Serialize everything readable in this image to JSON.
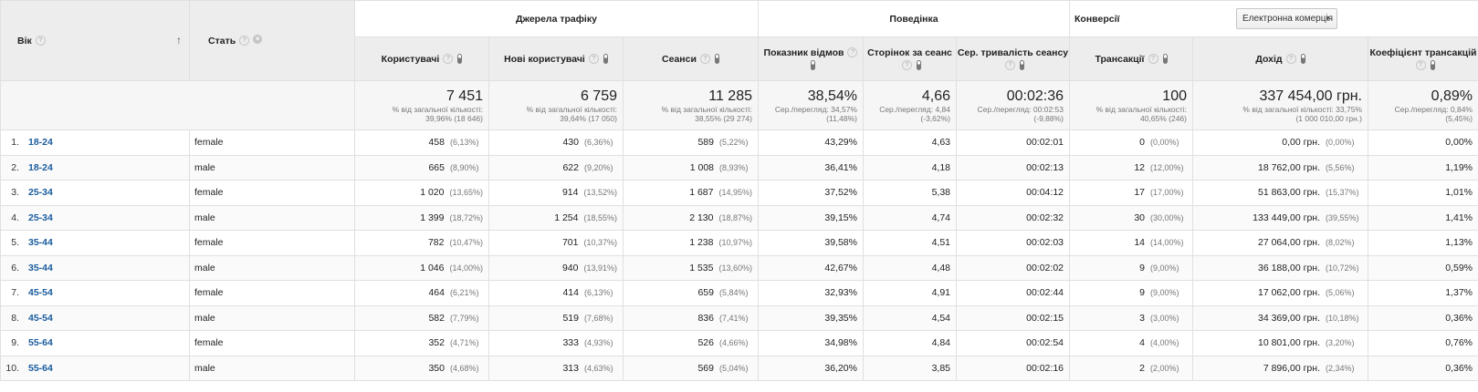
{
  "header": {
    "dimension1": "Вік",
    "dimension2": "Стать",
    "group_traffic": "Джерела трафіку",
    "group_behavior": "Поведінка",
    "group_conversions": "Конверсії",
    "ecommerce_dropdown": "Електронна комерція",
    "metrics": [
      "Користувачі",
      "Нові користувачі",
      "Сеанси",
      "Показник відмов",
      "Сторінок за сеанс",
      "Сер. тривалість сеансу",
      "Трансакції",
      "Дохід",
      "Коефіцієнт трансакцій"
    ]
  },
  "totals": [
    {
      "value": "7 451",
      "line1": "% від загальної кількості:",
      "line2": "39,96% (18 646)"
    },
    {
      "value": "6 759",
      "line1": "% від загальної кількості:",
      "line2": "39,64% (17 050)"
    },
    {
      "value": "11 285",
      "line1": "% від загальної кількості:",
      "line2": "38,55% (29 274)"
    },
    {
      "value": "38,54%",
      "line1": "Сер./перегляд: 34,57%",
      "line2": "(11,48%)"
    },
    {
      "value": "4,66",
      "line1": "Сер./перегляд: 4,84",
      "line2": "(-3,62%)"
    },
    {
      "value": "00:02:36",
      "line1": "Сер./перегляд: 00:02:53",
      "line2": "(-9,88%)"
    },
    {
      "value": "100",
      "line1": "% від загальної кількості:",
      "line2": "40,65% (246)"
    },
    {
      "value": "337 454,00 грн.",
      "line1": "% від загальної кількості: 33,75%",
      "line2": "(1 000 010,00 грн.)"
    },
    {
      "value": "0,89%",
      "line1": "Сер./перегляд: 0,84%",
      "line2": "(5,45%)"
    }
  ],
  "rows": [
    {
      "idx": "1.",
      "age": "18-24",
      "gender": "female",
      "users": "458",
      "users_pct": "(6,13%)",
      "new_users": "430",
      "new_users_pct": "(6,36%)",
      "sessions": "589",
      "sessions_pct": "(5,22%)",
      "bounce": "43,29%",
      "pages": "4,63",
      "duration": "00:02:01",
      "trans": "0",
      "trans_pct": "(0,00%)",
      "revenue": "0,00 грн.",
      "revenue_pct": "(0,00%)",
      "conv": "0,00%"
    },
    {
      "idx": "2.",
      "age": "18-24",
      "gender": "male",
      "users": "665",
      "users_pct": "(8,90%)",
      "new_users": "622",
      "new_users_pct": "(9,20%)",
      "sessions": "1 008",
      "sessions_pct": "(8,93%)",
      "bounce": "36,41%",
      "pages": "4,18",
      "duration": "00:02:13",
      "trans": "12",
      "trans_pct": "(12,00%)",
      "revenue": "18 762,00 грн.",
      "revenue_pct": "(5,56%)",
      "conv": "1,19%"
    },
    {
      "idx": "3.",
      "age": "25-34",
      "gender": "female",
      "users": "1 020",
      "users_pct": "(13,65%)",
      "new_users": "914",
      "new_users_pct": "(13,52%)",
      "sessions": "1 687",
      "sessions_pct": "(14,95%)",
      "bounce": "37,52%",
      "pages": "5,38",
      "duration": "00:04:12",
      "trans": "17",
      "trans_pct": "(17,00%)",
      "revenue": "51 863,00 грн.",
      "revenue_pct": "(15,37%)",
      "conv": "1,01%"
    },
    {
      "idx": "4.",
      "age": "25-34",
      "gender": "male",
      "users": "1 399",
      "users_pct": "(18,72%)",
      "new_users": "1 254",
      "new_users_pct": "(18,55%)",
      "sessions": "2 130",
      "sessions_pct": "(18,87%)",
      "bounce": "39,15%",
      "pages": "4,74",
      "duration": "00:02:32",
      "trans": "30",
      "trans_pct": "(30,00%)",
      "revenue": "133 449,00 грн.",
      "revenue_pct": "(39,55%)",
      "conv": "1,41%"
    },
    {
      "idx": "5.",
      "age": "35-44",
      "gender": "female",
      "users": "782",
      "users_pct": "(10,47%)",
      "new_users": "701",
      "new_users_pct": "(10,37%)",
      "sessions": "1 238",
      "sessions_pct": "(10,97%)",
      "bounce": "39,58%",
      "pages": "4,51",
      "duration": "00:02:03",
      "trans": "14",
      "trans_pct": "(14,00%)",
      "revenue": "27 064,00 грн.",
      "revenue_pct": "(8,02%)",
      "conv": "1,13%"
    },
    {
      "idx": "6.",
      "age": "35-44",
      "gender": "male",
      "users": "1 046",
      "users_pct": "(14,00%)",
      "new_users": "940",
      "new_users_pct": "(13,91%)",
      "sessions": "1 535",
      "sessions_pct": "(13,60%)",
      "bounce": "42,67%",
      "pages": "4,48",
      "duration": "00:02:02",
      "trans": "9",
      "trans_pct": "(9,00%)",
      "revenue": "36 188,00 грн.",
      "revenue_pct": "(10,72%)",
      "conv": "0,59%"
    },
    {
      "idx": "7.",
      "age": "45-54",
      "gender": "female",
      "users": "464",
      "users_pct": "(6,21%)",
      "new_users": "414",
      "new_users_pct": "(6,13%)",
      "sessions": "659",
      "sessions_pct": "(5,84%)",
      "bounce": "32,93%",
      "pages": "4,91",
      "duration": "00:02:44",
      "trans": "9",
      "trans_pct": "(9,00%)",
      "revenue": "17 062,00 грн.",
      "revenue_pct": "(5,06%)",
      "conv": "1,37%"
    },
    {
      "idx": "8.",
      "age": "45-54",
      "gender": "male",
      "users": "582",
      "users_pct": "(7,79%)",
      "new_users": "519",
      "new_users_pct": "(7,68%)",
      "sessions": "836",
      "sessions_pct": "(7,41%)",
      "bounce": "39,35%",
      "pages": "4,54",
      "duration": "00:02:15",
      "trans": "3",
      "trans_pct": "(3,00%)",
      "revenue": "34 369,00 грн.",
      "revenue_pct": "(10,18%)",
      "conv": "0,36%"
    },
    {
      "idx": "9.",
      "age": "55-64",
      "gender": "female",
      "users": "352",
      "users_pct": "(4,71%)",
      "new_users": "333",
      "new_users_pct": "(4,93%)",
      "sessions": "526",
      "sessions_pct": "(4,66%)",
      "bounce": "34,98%",
      "pages": "4,84",
      "duration": "00:02:54",
      "trans": "4",
      "trans_pct": "(4,00%)",
      "revenue": "10 801,00 грн.",
      "revenue_pct": "(3,20%)",
      "conv": "0,76%"
    },
    {
      "idx": "10.",
      "age": "55-64",
      "gender": "male",
      "users": "350",
      "users_pct": "(4,68%)",
      "new_users": "313",
      "new_users_pct": "(4,63%)",
      "sessions": "569",
      "sessions_pct": "(5,04%)",
      "bounce": "36,20%",
      "pages": "3,85",
      "duration": "00:02:16",
      "trans": "2",
      "trans_pct": "(2,00%)",
      "revenue": "7 896,00 грн.",
      "revenue_pct": "(2,34%)",
      "conv": "0,36%"
    }
  ]
}
